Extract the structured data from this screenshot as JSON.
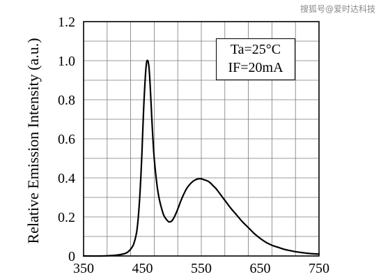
{
  "watermark": "搜狐号@爱时达科技",
  "annotation": {
    "line1": "Ta=25°C",
    "line2": "IF=20mA"
  },
  "chart_data": {
    "type": "line",
    "title": "",
    "xlabel": "",
    "ylabel": "Relative Emission Intensity (a.u.)",
    "xlim": [
      350,
      750
    ],
    "ylim": [
      0,
      1.2
    ],
    "x_ticks": [
      350,
      450,
      550,
      650,
      750
    ],
    "y_ticks": [
      0,
      0.2,
      0.4,
      0.6,
      0.8,
      1.0,
      1.2
    ],
    "x_tick_labels": [
      "350",
      "450",
      "550",
      "650",
      "750"
    ],
    "y_tick_labels": [
      "0",
      "0.2",
      "0.4",
      "0.6",
      "0.8",
      "1.0",
      "1.2"
    ],
    "grid": true,
    "series": [
      {
        "x": [
          350,
          380,
          400,
          410,
          420,
          425,
          430,
          435,
          440,
          443,
          446,
          449,
          452,
          455,
          457,
          459,
          461,
          463,
          465,
          467,
          470,
          474,
          478,
          482,
          486,
          490,
          495,
          500,
          505,
          510,
          515,
          520,
          525,
          530,
          535,
          540,
          545,
          550,
          555,
          560,
          565,
          570,
          575,
          580,
          585,
          590,
          595,
          600,
          610,
          620,
          630,
          640,
          650,
          660,
          670,
          680,
          690,
          700,
          710,
          720,
          730,
          740,
          750
        ],
        "y": [
          0,
          0,
          0.003,
          0.006,
          0.012,
          0.02,
          0.035,
          0.06,
          0.12,
          0.2,
          0.33,
          0.52,
          0.75,
          0.92,
          0.99,
          1.0,
          0.97,
          0.88,
          0.76,
          0.64,
          0.5,
          0.38,
          0.3,
          0.25,
          0.21,
          0.19,
          0.175,
          0.18,
          0.205,
          0.24,
          0.28,
          0.315,
          0.345,
          0.365,
          0.38,
          0.39,
          0.395,
          0.395,
          0.39,
          0.385,
          0.375,
          0.36,
          0.345,
          0.325,
          0.305,
          0.285,
          0.265,
          0.245,
          0.21,
          0.175,
          0.145,
          0.115,
          0.09,
          0.07,
          0.055,
          0.045,
          0.035,
          0.028,
          0.022,
          0.018,
          0.014,
          0.011,
          0.01
        ]
      }
    ]
  }
}
